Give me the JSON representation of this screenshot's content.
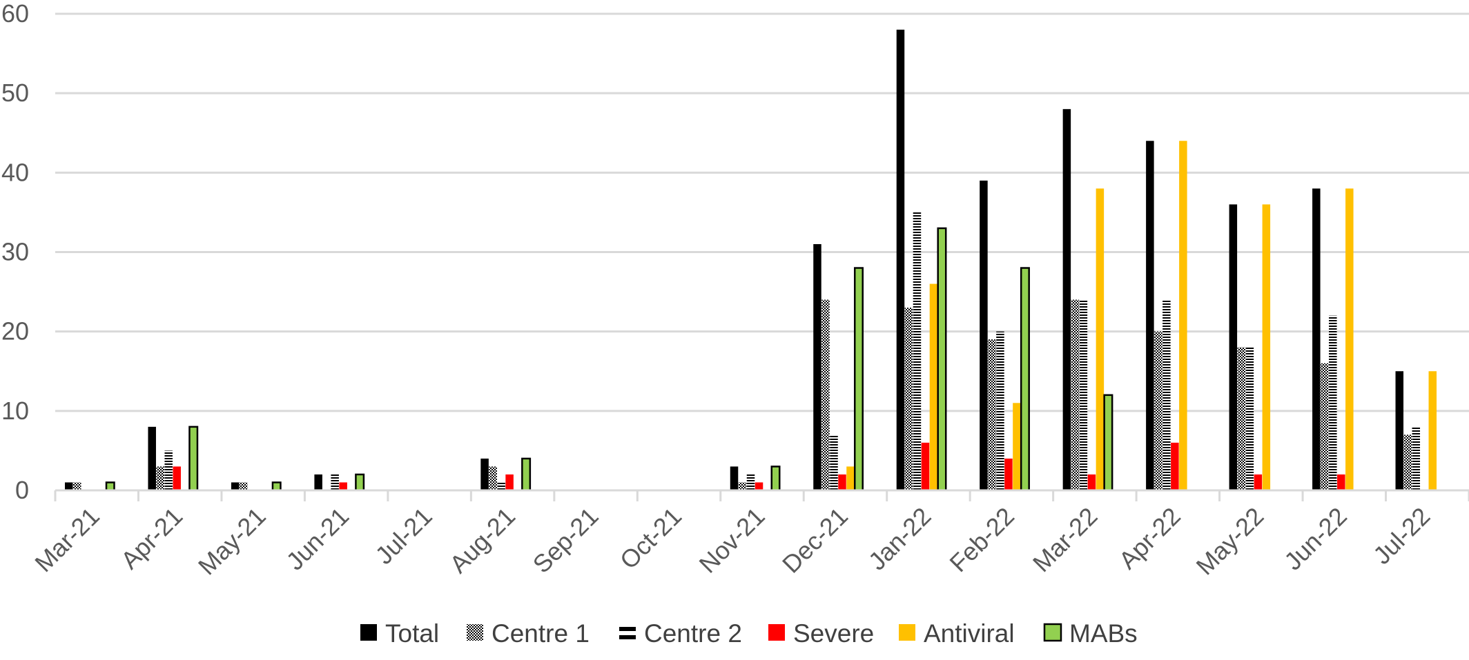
{
  "chart_data": {
    "type": "bar",
    "title": "",
    "xlabel": "",
    "ylabel": "",
    "ylim": [
      0,
      60
    ],
    "yticks": [
      0,
      10,
      20,
      30,
      40,
      50,
      60
    ],
    "grid": true,
    "legend_position": "bottom",
    "categories": [
      "Mar-21",
      "Apr-21",
      "May-21",
      "Jun-21",
      "Jul-21",
      "Aug-21",
      "Sep-21",
      "Oct-21",
      "Nov-21",
      "Dec-21",
      "Jan-22",
      "Feb-22",
      "Mar-22",
      "Apr-22",
      "May-22",
      "Jun-22",
      "Jul-22"
    ],
    "series": [
      {
        "name": "Total",
        "color": "#000000",
        "pattern": "solid",
        "values": [
          1,
          8,
          1,
          2,
          0,
          4,
          0,
          0,
          3,
          31,
          58,
          39,
          48,
          44,
          36,
          38,
          15
        ]
      },
      {
        "name": "Centre 1",
        "color": "#000000",
        "pattern": "checker",
        "values": [
          1,
          3,
          1,
          0,
          0,
          3,
          0,
          0,
          1,
          24,
          23,
          19,
          24,
          20,
          18,
          16,
          7
        ]
      },
      {
        "name": "Centre 2",
        "color": "#000000",
        "pattern": "hstripe",
        "values": [
          0,
          5,
          0,
          2,
          0,
          1,
          0,
          0,
          2,
          7,
          35,
          20,
          24,
          24,
          18,
          22,
          8
        ]
      },
      {
        "name": "Severe",
        "color": "#ff0000",
        "pattern": "solid",
        "values": [
          0,
          3,
          0,
          1,
          0,
          2,
          0,
          0,
          1,
          2,
          6,
          4,
          2,
          6,
          2,
          2,
          0
        ]
      },
      {
        "name": "Antiviral",
        "color": "#ffc000",
        "pattern": "solid",
        "values": [
          0,
          0,
          0,
          0,
          0,
          0,
          0,
          0,
          0,
          3,
          26,
          11,
          38,
          44,
          36,
          38,
          15
        ]
      },
      {
        "name": "MABs",
        "color": "#92d050",
        "pattern": "outlined",
        "values": [
          1,
          8,
          1,
          2,
          0,
          4,
          0,
          0,
          3,
          28,
          33,
          28,
          12,
          0,
          0,
          0,
          0
        ]
      }
    ]
  }
}
